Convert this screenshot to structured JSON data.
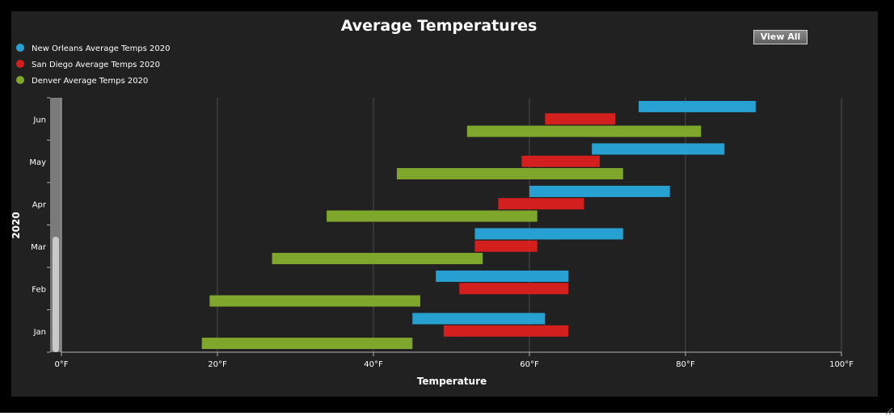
{
  "chart_data": {
    "type": "bar",
    "orientation": "horizontal-range",
    "title": "Average Temperatures",
    "xlabel": "Temperature",
    "ylabel": "2020",
    "xlim": [
      0,
      100
    ],
    "x_ticks": [
      "0°F",
      "20°F",
      "40°F",
      "60°F",
      "80°F",
      "100°F"
    ],
    "x_tick_values": [
      0,
      20,
      40,
      60,
      80,
      100
    ],
    "categories": [
      "Jan",
      "Feb",
      "Mar",
      "Apr",
      "May",
      "Jun"
    ],
    "grid": "vertical",
    "legend_position": "top-left",
    "series": [
      {
        "name": "New Orleans Average Temps 2020",
        "color": "#27a1d2",
        "ranges": [
          [
            45,
            62
          ],
          [
            48,
            65
          ],
          [
            53,
            72
          ],
          [
            60,
            78
          ],
          [
            68,
            85
          ],
          [
            74,
            89
          ]
        ]
      },
      {
        "name": "San Diego Average Temps 2020",
        "color": "#d41f1f",
        "ranges": [
          [
            49,
            65
          ],
          [
            51,
            65
          ],
          [
            53,
            61
          ],
          [
            56,
            67
          ],
          [
            59,
            69
          ],
          [
            62,
            71
          ]
        ]
      },
      {
        "name": "Denver Average Temps 2020",
        "color": "#7ea72c",
        "ranges": [
          [
            18,
            45
          ],
          [
            19,
            46
          ],
          [
            27,
            54
          ],
          [
            34,
            61
          ],
          [
            43,
            72
          ],
          [
            52,
            82
          ]
        ]
      }
    ]
  },
  "controls": {
    "view_all_label": "View All"
  },
  "colors": {
    "background": "#222121",
    "frame": "#000000",
    "grid": "#4d4d4d",
    "axis": "#b3b3b3",
    "text": "#ffffff"
  }
}
